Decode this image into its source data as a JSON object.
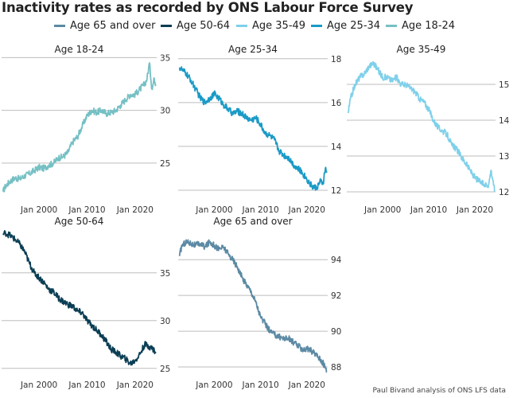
{
  "title": "Inactivity rates as recorded by ONS Labour Force Survey",
  "caption": "Paul Bivand analysis of ONS LFS data",
  "legend": [
    {
      "name": "Age 65 and over",
      "color": "#5c8aa4"
    },
    {
      "name": "Age 50-64",
      "color": "#0b3e54"
    },
    {
      "name": "Age 35-49",
      "color": "#7fd0ea"
    },
    {
      "name": "Age 25-34",
      "color": "#1a9ac6"
    },
    {
      "name": "Age 18-24",
      "color": "#76c0c4"
    }
  ],
  "chart_data": [
    {
      "type": "line",
      "title": "Age 18-24",
      "color": "#76c0c4",
      "xlabel": "",
      "ylabel": "",
      "xlim": [
        1992.2,
        2024.5
      ],
      "ylim": [
        21.6,
        35.1
      ],
      "x_ticks": [
        {
          "value": 2000,
          "label": "Jan 2000"
        },
        {
          "value": 2010,
          "label": "Jan 2010"
        },
        {
          "value": 2020,
          "label": "Jan 2020"
        }
      ],
      "y_ticks": [
        25,
        30,
        35
      ],
      "grid": "horizontal",
      "y_axis_side": "right",
      "x": [
        1992.5,
        1993,
        1994,
        1995,
        1996,
        1997,
        1998,
        1999,
        2000,
        2001,
        2002,
        2003,
        2004,
        2005,
        2006,
        2007,
        2008,
        2009,
        2010,
        2011,
        2012,
        2013,
        2014,
        2015,
        2016,
        2017,
        2018,
        2019,
        2020,
        2021,
        2022,
        2022.5,
        2023,
        2023.5,
        2024,
        2024.3
      ],
      "values": [
        22.3,
        22.8,
        23.3,
        23.6,
        23.5,
        23.8,
        24.0,
        24.3,
        24.6,
        24.5,
        24.8,
        25.0,
        25.5,
        25.6,
        26.0,
        27.0,
        27.5,
        28.5,
        29.5,
        30.0,
        29.8,
        30.0,
        29.7,
        29.8,
        30.0,
        30.5,
        31.0,
        31.5,
        31.5,
        32.0,
        32.5,
        33.0,
        34.5,
        32.0,
        33.0,
        32.5
      ]
    },
    {
      "type": "line",
      "title": "Age 25-34",
      "color": "#1a9ac6",
      "xlabel": "",
      "ylabel": "",
      "xlim": [
        1992.2,
        2024.5
      ],
      "ylim": [
        11.6,
        18.1
      ],
      "x_ticks": [
        {
          "value": 2000,
          "label": "Jan 2000"
        },
        {
          "value": 2010,
          "label": "Jan 2010"
        },
        {
          "value": 2020,
          "label": "Jan 2020"
        }
      ],
      "y_ticks": [
        12,
        14,
        16,
        18
      ],
      "grid": "horizontal",
      "y_axis_side": "right",
      "x": [
        1992.5,
        1993,
        1994,
        1995,
        1996,
        1997,
        1998,
        1999,
        2000,
        2001,
        2002,
        2003,
        2004,
        2005,
        2006,
        2007,
        2008,
        2009,
        2010,
        2011,
        2012,
        2013,
        2014,
        2015,
        2016,
        2017,
        2018,
        2019,
        2020,
        2021,
        2022,
        2023,
        2023.5,
        2024,
        2024.3
      ],
      "values": [
        17.6,
        17.5,
        17.3,
        17.0,
        16.6,
        16.2,
        16.0,
        16.2,
        16.4,
        16.2,
        15.9,
        15.7,
        15.5,
        15.6,
        15.5,
        15.3,
        15.2,
        15.3,
        15.0,
        14.6,
        14.5,
        14.3,
        13.8,
        13.6,
        13.5,
        13.2,
        13.0,
        12.8,
        12.5,
        12.2,
        12.1,
        12.4,
        12.3,
        13.0,
        12.8
      ]
    },
    {
      "type": "line",
      "title": "Age 35-49",
      "color": "#7fd0ea",
      "xlabel": "",
      "ylabel": "",
      "xlim": [
        1992.2,
        2024.5
      ],
      "ylim": [
        11.8,
        15.6
      ],
      "x_ticks": [
        {
          "value": 2000,
          "label": "Jan 2000"
        },
        {
          "value": 2010,
          "label": "Jan 2010"
        },
        {
          "value": 2020,
          "label": "Jan 2020"
        }
      ],
      "y_ticks": [
        12,
        13,
        14,
        15
      ],
      "grid": "horizontal",
      "y_axis_side": "right",
      "x": [
        1992.5,
        1993,
        1994,
        1995,
        1996,
        1997,
        1998,
        1999,
        2000,
        2001,
        2002,
        2003,
        2004,
        2005,
        2006,
        2007,
        2008,
        2009,
        2010,
        2011,
        2012,
        2013,
        2014,
        2015,
        2016,
        2017,
        2018,
        2019,
        2020,
        2021,
        2022,
        2023,
        2023.5,
        2024,
        2024.3
      ],
      "values": [
        14.2,
        14.6,
        15.0,
        15.2,
        15.3,
        15.5,
        15.6,
        15.4,
        15.2,
        15.2,
        15.1,
        15.2,
        15.0,
        15.0,
        14.9,
        14.8,
        14.6,
        14.5,
        14.3,
        14.0,
        13.8,
        13.7,
        13.6,
        13.3,
        13.2,
        13.0,
        12.8,
        12.6,
        12.4,
        12.3,
        12.2,
        12.2,
        12.6,
        12.3,
        12.0
      ]
    },
    {
      "type": "line",
      "title": "Age 50-64",
      "color": "#0b3e54",
      "xlabel": "",
      "ylabel": "",
      "xlim": [
        1992.2,
        2024.5
      ],
      "ylim": [
        24.4,
        39.4
      ],
      "x_ticks": [
        {
          "value": 2000,
          "label": "Jan 2000"
        },
        {
          "value": 2010,
          "label": "Jan 2010"
        },
        {
          "value": 2020,
          "label": "Jan 2020"
        }
      ],
      "y_ticks": [
        25,
        30,
        35
      ],
      "grid": "horizontal",
      "y_axis_side": "right",
      "x": [
        1992.5,
        1993,
        1994,
        1995,
        1996,
        1997,
        1998,
        1999,
        2000,
        2001,
        2002,
        2003,
        2004,
        2005,
        2006,
        2007,
        2008,
        2009,
        2010,
        2011,
        2012,
        2013,
        2014,
        2015,
        2016,
        2017,
        2018,
        2019,
        2020,
        2021,
        2022,
        2023,
        2024,
        2024.3
      ],
      "values": [
        39.0,
        39.2,
        38.9,
        38.5,
        38.0,
        37.2,
        36.0,
        35.0,
        34.5,
        34.0,
        33.3,
        33.0,
        32.4,
        32.0,
        31.7,
        31.5,
        31.0,
        30.8,
        30.0,
        29.5,
        29.0,
        28.5,
        27.8,
        27.0,
        26.7,
        26.3,
        26.0,
        25.5,
        25.8,
        26.5,
        27.5,
        27.3,
        26.9,
        26.6
      ]
    },
    {
      "type": "line",
      "title": "Age 65 and over",
      "color": "#5c8aa4",
      "xlabel": "",
      "ylabel": "",
      "xlim": [
        1992.2,
        2024.5
      ],
      "ylim": [
        87.6,
        95.3
      ],
      "x_ticks": [
        {
          "value": 2000,
          "label": "Jan 2000"
        },
        {
          "value": 2010,
          "label": "Jan 2010"
        },
        {
          "value": 2020,
          "label": "Jan 2020"
        }
      ],
      "y_ticks": [
        88,
        90,
        92,
        94
      ],
      "grid": "horizontal",
      "y_axis_side": "right",
      "x": [
        1992.5,
        1993,
        1994,
        1995,
        1996,
        1997,
        1998,
        1999,
        2000,
        2001,
        2002,
        2003,
        2004,
        2005,
        2006,
        2007,
        2008,
        2009,
        2010,
        2011,
        2012,
        2013,
        2014,
        2015,
        2016,
        2017,
        2018,
        2019,
        2020,
        2021,
        2022,
        2023,
        2024,
        2024.3
      ],
      "values": [
        94.2,
        94.8,
        95.0,
        94.9,
        94.8,
        94.9,
        94.7,
        95.0,
        94.8,
        94.6,
        94.7,
        94.3,
        94.0,
        93.6,
        93.0,
        92.6,
        92.2,
        91.6,
        90.8,
        90.4,
        90.0,
        89.8,
        89.7,
        89.6,
        89.6,
        89.4,
        89.2,
        89.0,
        89.0,
        88.9,
        88.7,
        88.4,
        88.0,
        87.7
      ]
    }
  ]
}
